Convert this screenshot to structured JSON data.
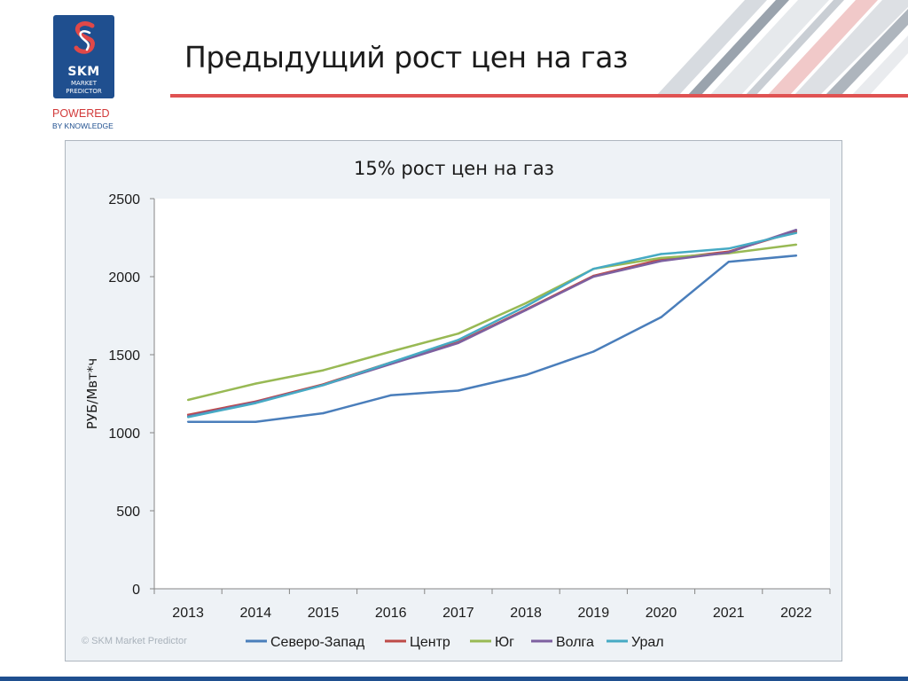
{
  "page": {
    "title": "Предыдущий рост цен на газ"
  },
  "logo": {
    "name": "SKM",
    "tagline_line1": "MARKET",
    "tagline_line2": "PREDICTOR",
    "powered_line1": "POWERED",
    "powered_line2": "BY KNOWLEDGE",
    "brand_blue": "#1f4f8f",
    "brand_red": "#d23a3a"
  },
  "chart_data": {
    "type": "line",
    "title": "15% рост цен на газ",
    "xlabel": "",
    "ylabel": "РУБ/Мвт*ч",
    "categories": [
      "2013",
      "2014",
      "2015",
      "2016",
      "2017",
      "2018",
      "2019",
      "2020",
      "2021",
      "2022"
    ],
    "ylim": [
      0,
      2500
    ],
    "yticks": [
      0,
      500,
      1000,
      1500,
      2000,
      2500
    ],
    "grid": false,
    "legend_position": "bottom",
    "series": [
      {
        "name": "Северо-Запад",
        "color": "#4a7ebb",
        "values": [
          1070,
          1070,
          1125,
          1240,
          1270,
          1370,
          1520,
          1740,
          2095,
          2135
        ]
      },
      {
        "name": "Центр",
        "color": "#be4b48",
        "values": [
          1115,
          1200,
          1310,
          1450,
          1580,
          1790,
          2005,
          2110,
          2160,
          2290
        ]
      },
      {
        "name": "Юг",
        "color": "#98b954",
        "values": [
          1210,
          1315,
          1400,
          1520,
          1635,
          1830,
          2050,
          2120,
          2150,
          2205
        ]
      },
      {
        "name": "Волга",
        "color": "#7d60a0",
        "values": [
          1105,
          1195,
          1305,
          1440,
          1575,
          1785,
          2000,
          2100,
          2155,
          2300
        ]
      },
      {
        "name": "Урал",
        "color": "#46aac4",
        "values": [
          1100,
          1190,
          1305,
          1450,
          1595,
          1810,
          2050,
          2145,
          2180,
          2280
        ]
      }
    ],
    "watermark": "© SKM Market Predictor"
  }
}
